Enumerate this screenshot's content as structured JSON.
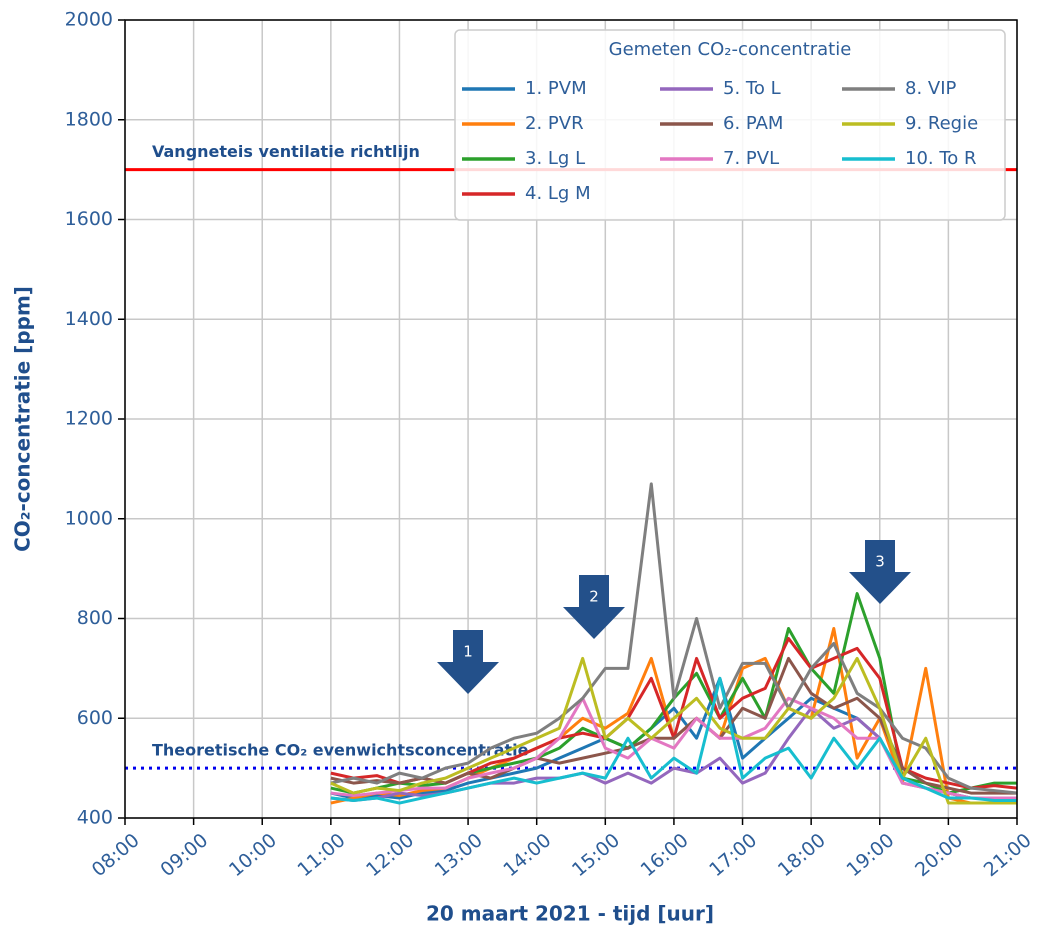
{
  "chart_data": {
    "type": "line",
    "ylabel": "CO₂-concentratie [ppm]",
    "xlabel": "20 maart 2021 - tijd [uur]",
    "legend_title": "Gemeten CO₂-concentratie",
    "legend": "upper right",
    "grid": true,
    "xlim": [
      8,
      21
    ],
    "xticks": [
      {
        "value": 8,
        "label": "08:00"
      },
      {
        "value": 9,
        "label": "09:00"
      },
      {
        "value": 10,
        "label": "10:00"
      },
      {
        "value": 11,
        "label": "11:00"
      },
      {
        "value": 12,
        "label": "12:00"
      },
      {
        "value": 13,
        "label": "13:00"
      },
      {
        "value": 14,
        "label": "14:00"
      },
      {
        "value": 15,
        "label": "15:00"
      },
      {
        "value": 16,
        "label": "16:00"
      },
      {
        "value": 17,
        "label": "17:00"
      },
      {
        "value": 18,
        "label": "18:00"
      },
      {
        "value": 19,
        "label": "19:00"
      },
      {
        "value": 20,
        "label": "20:00"
      },
      {
        "value": 21,
        "label": "21:00"
      }
    ],
    "ylim": [
      400,
      2000
    ],
    "yticks": [
      400,
      600,
      800,
      1000,
      1200,
      1400,
      1600,
      1800,
      2000
    ],
    "x": [
      11,
      11.33,
      11.67,
      12,
      12.33,
      12.67,
      13,
      13.33,
      13.67,
      14,
      14.33,
      14.67,
      15,
      15.33,
      15.67,
      16,
      16.33,
      16.67,
      17,
      17.33,
      17.67,
      18,
      18.33,
      18.67,
      19,
      19.33,
      19.67,
      20,
      20.33,
      20.67,
      21
    ],
    "series": [
      {
        "name": "1. PVM",
        "color": "#1f77b4",
        "values": [
          450,
          440,
          445,
          440,
          450,
          455,
          470,
          480,
          490,
          500,
          520,
          540,
          560,
          540,
          580,
          620,
          560,
          680,
          520,
          560,
          600,
          640,
          620,
          600,
          560,
          480,
          460,
          450,
          440,
          440,
          440
        ]
      },
      {
        "name": "2. PVR",
        "color": "#ff7f0e",
        "values": [
          430,
          440,
          450,
          445,
          455,
          460,
          480,
          500,
          520,
          540,
          560,
          600,
          580,
          610,
          720,
          560,
          600,
          560,
          700,
          720,
          620,
          600,
          780,
          520,
          600,
          470,
          700,
          440,
          430,
          430,
          430
        ]
      },
      {
        "name": "3. Lg L",
        "color": "#2ca02c",
        "values": [
          460,
          450,
          460,
          470,
          465,
          470,
          490,
          500,
          510,
          520,
          540,
          580,
          560,
          540,
          580,
          640,
          690,
          600,
          680,
          600,
          780,
          700,
          650,
          850,
          720,
          480,
          470,
          450,
          460,
          470,
          470
        ]
      },
      {
        "name": "4. Lg M",
        "color": "#d62728",
        "values": [
          490,
          480,
          485,
          470,
          480,
          470,
          490,
          510,
          520,
          540,
          560,
          570,
          560,
          600,
          680,
          560,
          720,
          600,
          640,
          660,
          760,
          700,
          720,
          740,
          680,
          500,
          480,
          470,
          460,
          465,
          460
        ]
      },
      {
        "name": "5. To L",
        "color": "#9467bd",
        "values": [
          440,
          435,
          440,
          450,
          445,
          450,
          460,
          470,
          470,
          480,
          480,
          490,
          470,
          490,
          470,
          500,
          490,
          520,
          470,
          490,
          560,
          620,
          580,
          600,
          560,
          470,
          460,
          450,
          440,
          440,
          440
        ]
      },
      {
        "name": "6. PAM",
        "color": "#8c564b",
        "values": [
          480,
          470,
          475,
          470,
          480,
          470,
          490,
          480,
          500,
          520,
          510,
          520,
          530,
          540,
          560,
          560,
          600,
          560,
          620,
          600,
          720,
          650,
          620,
          640,
          600,
          500,
          470,
          460,
          450,
          450,
          450
        ]
      },
      {
        "name": "7. PVL",
        "color": "#e377c2",
        "values": [
          450,
          445,
          450,
          455,
          460,
          460,
          480,
          490,
          500,
          520,
          560,
          640,
          540,
          520,
          560,
          540,
          600,
          560,
          560,
          580,
          640,
          620,
          600,
          560,
          560,
          470,
          460,
          450,
          440,
          440,
          440
        ]
      },
      {
        "name": "8. VIP",
        "color": "#7f7f7f",
        "values": [
          470,
          480,
          470,
          490,
          480,
          500,
          510,
          540,
          560,
          570,
          600,
          640,
          700,
          700,
          1070,
          640,
          800,
          620,
          710,
          710,
          620,
          700,
          750,
          650,
          620,
          560,
          540,
          480,
          460,
          455,
          450
        ]
      },
      {
        "name": "9. Regie",
        "color": "#bcbd22",
        "values": [
          470,
          450,
          460,
          455,
          470,
          480,
          500,
          520,
          540,
          560,
          580,
          720,
          560,
          600,
          560,
          600,
          640,
          580,
          560,
          560,
          620,
          600,
          640,
          720,
          620,
          480,
          560,
          430,
          430,
          430,
          430
        ]
      },
      {
        "name": "10. To R",
        "color": "#17becf",
        "values": [
          440,
          435,
          440,
          430,
          440,
          450,
          460,
          470,
          480,
          470,
          480,
          490,
          480,
          560,
          480,
          520,
          490,
          680,
          480,
          520,
          540,
          480,
          560,
          500,
          560,
          480,
          460,
          440,
          440,
          435,
          435
        ]
      }
    ],
    "hlines": [
      {
        "value": 1700,
        "label": "Vangneteis ventilatie richtlijn",
        "color": "#ff0000",
        "style": "solid"
      },
      {
        "value": 500,
        "label": "Theoretische CO₂ evenwichtsconcentratie",
        "color": "#0000ee",
        "style": "dotted"
      }
    ],
    "annotations": [
      {
        "text": "1"
      },
      {
        "text": "2"
      },
      {
        "text": "3"
      }
    ]
  }
}
